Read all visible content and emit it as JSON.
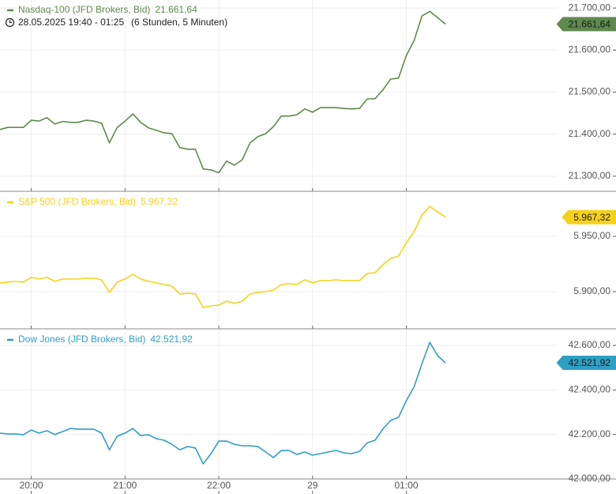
{
  "chart_data": [
    {
      "type": "line",
      "title": "Nasdaq-100 (JFD Brokers, Bid)",
      "subtitle": "28.05.2025 19:40 - 01:25",
      "subtitle_note": "(6 Stunden, 5 Minuten)",
      "series": [
        {
          "name": "Nasdaq-100 (JFD Brokers, Bid)",
          "color": "#5f8a4e",
          "values": [
            21411,
            21416,
            21416,
            21416,
            21433,
            21431,
            21439,
            21424,
            21430,
            21428,
            21428,
            21433,
            21431,
            21426,
            21379,
            21416,
            21431,
            21448,
            21428,
            21415,
            21409,
            21403,
            21401,
            21368,
            21364,
            21364,
            21317,
            21315,
            21308,
            21336,
            21326,
            21339,
            21379,
            21394,
            21401,
            21418,
            21443,
            21443,
            21446,
            21460,
            21452,
            21463,
            21463,
            21463,
            21461,
            21460,
            21461,
            21484,
            21484,
            21505,
            21531,
            21533,
            21587,
            21623,
            21681,
            21692,
            21677,
            21661.64
          ],
          "value_labels": [
            null,
            null,
            null,
            null,
            null,
            null,
            null,
            null,
            null,
            null,
            null,
            null,
            null,
            null,
            null,
            null,
            null,
            null,
            null,
            null,
            null,
            null,
            null,
            null,
            null,
            null,
            null,
            null,
            null,
            null,
            null,
            null,
            null,
            null,
            null,
            null,
            null,
            null,
            null,
            null,
            null,
            null,
            null,
            null,
            null,
            null,
            null,
            null,
            null,
            null,
            null,
            null,
            null,
            null,
            null,
            null,
            null,
            "21.661,64"
          ]
        }
      ],
      "ylim": [
        21264,
        21719
      ],
      "yticks": [
        {
          "value": 21300,
          "label": "21.300,00"
        },
        {
          "value": 21400,
          "label": "21.400,00"
        },
        {
          "value": 21500,
          "label": "21.500,00"
        },
        {
          "value": 21600,
          "label": "21.600,00"
        },
        {
          "value": 21700,
          "label": "21.700,00"
        }
      ],
      "grid": true
    },
    {
      "type": "line",
      "title": "S&P 500 (JFD Brokers, Bid)",
      "series": [
        {
          "name": "S&P 500 (JFD Brokers, Bid)",
          "color": "#f5d21a",
          "values": [
            5907.9,
            5908.6,
            5909.3,
            5908.6,
            5912.9,
            5911.4,
            5912.9,
            5909.3,
            5911.4,
            5911.4,
            5911.4,
            5912.1,
            5912.1,
            5910.7,
            5899.3,
            5908.6,
            5911.4,
            5915.7,
            5911.4,
            5909.3,
            5907.9,
            5906.4,
            5905,
            5897.9,
            5898.6,
            5897.9,
            5885.7,
            5887.1,
            5887.9,
            5891.4,
            5889.3,
            5891.4,
            5897.9,
            5899.3,
            5900,
            5901.4,
            5906.4,
            5907.1,
            5906.4,
            5910.7,
            5907.9,
            5910,
            5910,
            5910.7,
            5910,
            5910,
            5910,
            5916.4,
            5917.1,
            5924.3,
            5930,
            5932.1,
            5944.3,
            5954.3,
            5969.3,
            5977.1,
            5972.1,
            5967.32
          ],
          "value_labels": [
            null,
            null,
            null,
            null,
            null,
            null,
            null,
            null,
            null,
            null,
            null,
            null,
            null,
            null,
            null,
            null,
            null,
            null,
            null,
            null,
            null,
            null,
            null,
            null,
            null,
            null,
            null,
            null,
            null,
            null,
            null,
            null,
            null,
            null,
            null,
            null,
            null,
            null,
            null,
            null,
            null,
            null,
            null,
            null,
            null,
            null,
            null,
            null,
            null,
            null,
            null,
            null,
            null,
            null,
            null,
            null,
            null,
            "5.967,32"
          ]
        }
      ],
      "ylim": [
        5866.4,
        5990
      ],
      "yticks": [
        {
          "value": 5900,
          "label": "5.900,00"
        },
        {
          "value": 5950,
          "label": "5.950,00"
        }
      ],
      "grid": true
    },
    {
      "type": "line",
      "title": "Dow Jones (JFD Brokers, Bid)",
      "categories": [
        null,
        null,
        null,
        null,
        "20:00",
        null,
        null,
        null,
        null,
        null,
        null,
        null,
        null,
        null,
        null,
        null,
        "21:00",
        null,
        null,
        null,
        null,
        null,
        null,
        null,
        null,
        null,
        null,
        null,
        "22:00",
        null,
        null,
        null,
        null,
        null,
        null,
        null,
        null,
        null,
        null,
        null,
        "29",
        null,
        null,
        null,
        null,
        null,
        null,
        null,
        null,
        null,
        null,
        null,
        "01:00",
        null,
        null,
        null,
        null,
        null
      ],
      "series": [
        {
          "name": "Dow Jones (JFD Brokers, Bid)",
          "color": "#2f9fc4",
          "values": [
            42206,
            42202,
            42202,
            42199,
            42220,
            42206,
            42217,
            42199,
            42213,
            42227,
            42224,
            42224,
            42224,
            42206,
            42131,
            42192,
            42206,
            42227,
            42195,
            42199,
            42181,
            42174,
            42156,
            42131,
            42146,
            42139,
            42068,
            42114,
            42170,
            42170,
            42156,
            42149,
            42149,
            42146,
            42121,
            42096,
            42128,
            42128,
            42110,
            42121,
            42107,
            42114,
            42121,
            42128,
            42117,
            42114,
            42124,
            42163,
            42174,
            42224,
            42263,
            42277,
            42352,
            42415,
            42518,
            42614,
            42554,
            42521.92
          ],
          "value_labels": [
            null,
            null,
            null,
            null,
            null,
            null,
            null,
            null,
            null,
            null,
            null,
            null,
            null,
            null,
            null,
            null,
            null,
            null,
            null,
            null,
            null,
            null,
            null,
            null,
            null,
            null,
            null,
            null,
            null,
            null,
            null,
            null,
            null,
            null,
            null,
            null,
            null,
            null,
            null,
            null,
            null,
            null,
            null,
            null,
            null,
            null,
            null,
            null,
            null,
            null,
            null,
            null,
            null,
            null,
            null,
            null,
            null,
            "42.521,92"
          ]
        }
      ],
      "ylim": [
        42000,
        42671
      ],
      "yticks": [
        {
          "value": 42000,
          "label": "42.000,00"
        },
        {
          "value": 42200,
          "label": "42.200,00"
        },
        {
          "value": 42400,
          "label": "42.400,00"
        },
        {
          "value": 42600,
          "label": "42.600,00"
        }
      ],
      "grid": true
    }
  ]
}
